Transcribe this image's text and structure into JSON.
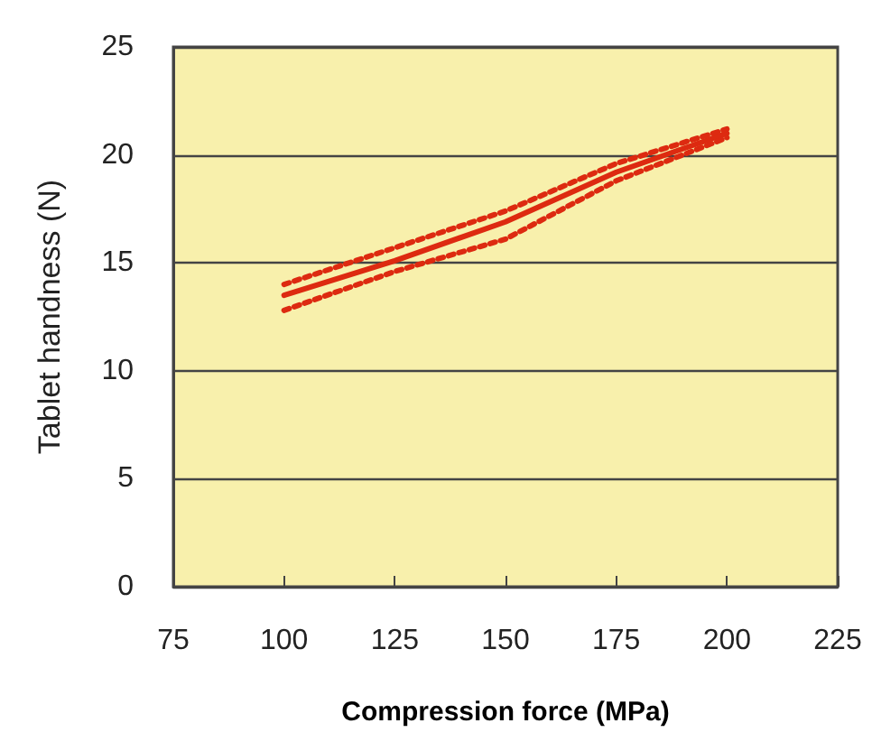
{
  "chart_data": {
    "type": "line",
    "xlabel": "Compression force (MPa)",
    "ylabel": "Tablet handness (N)",
    "x": [
      100,
      125,
      150,
      175,
      200
    ],
    "series": [
      {
        "color": "#dd2a10",
        "values": [
          13.5,
          15.1,
          16.9,
          19.2,
          21.0
        ],
        "line_style": "solid"
      },
      {
        "color": "#dd2a10",
        "values": [
          12.8,
          14.6,
          16.1,
          18.8,
          20.8
        ],
        "line_style": "dotted"
      },
      {
        "color": "#dd2a10",
        "values": [
          14.0,
          15.7,
          17.4,
          19.6,
          21.2
        ],
        "line_style": "dotted"
      }
    ],
    "xlim": [
      75,
      225
    ],
    "xticks": [
      75,
      100,
      125,
      150,
      175,
      200,
      225
    ],
    "ylim": [
      0,
      25
    ],
    "yticks": [
      0,
      5,
      10,
      15,
      20,
      25
    ],
    "grid": "y",
    "marker": "none"
  }
}
